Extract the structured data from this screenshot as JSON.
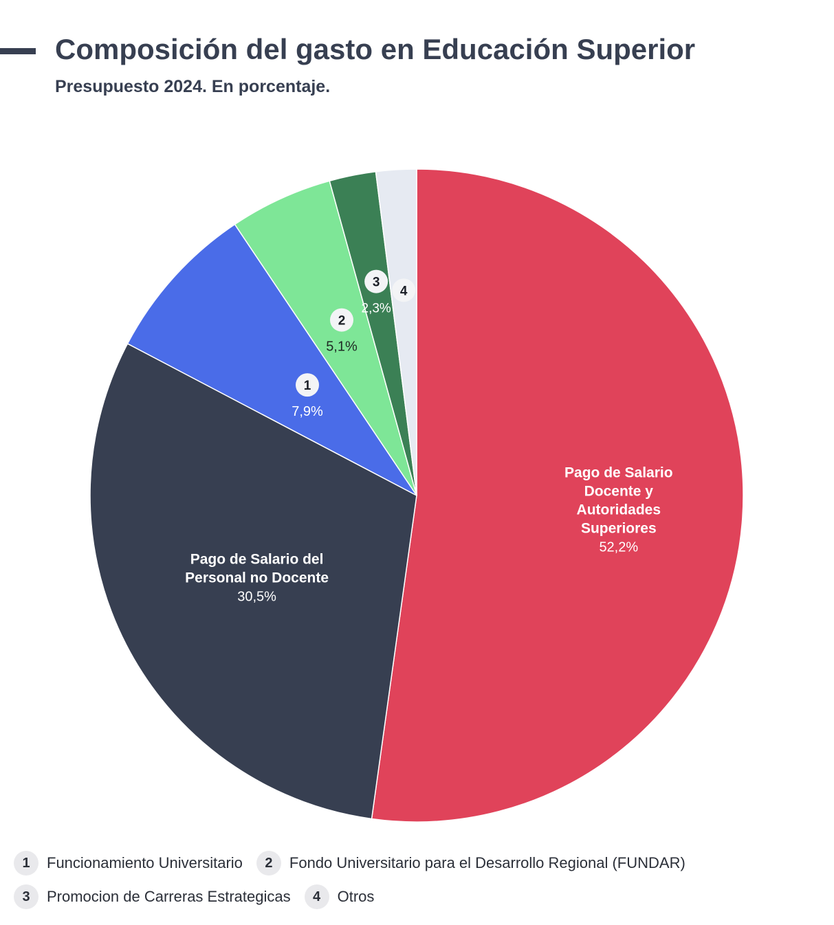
{
  "header": {
    "title": "Composición del gasto en Educación Superior",
    "subtitle": "Presupuesto 2024. En porcentaje."
  },
  "chart_data": {
    "type": "pie",
    "title": "Composición del gasto en Educación Superior",
    "subtitle": "Presupuesto 2024. En porcentaje.",
    "value_format": "percent",
    "start": "top, clockwise",
    "slices": [
      {
        "label": "Pago de Salario Docente y Autoridades Superiores",
        "label_lines": [
          "Pago de Salario",
          "Docente y",
          "Autoridades",
          "Superiores"
        ],
        "value": 52.2,
        "value_label": "52,2%",
        "color": "#e0435a",
        "marker": ""
      },
      {
        "label": "Pago de Salario del Personal no Docente",
        "label_lines": [
          "Pago de Salario del",
          "Personal no Docente"
        ],
        "value": 30.5,
        "value_label": "30,5%",
        "color": "#373f51",
        "marker": ""
      },
      {
        "label": "Funcionamiento Universitario",
        "label_lines": [],
        "value": 7.9,
        "value_label": "7,9%",
        "color": "#4a6ce8",
        "marker": "1"
      },
      {
        "label": "Fondo Universitario para el Desarrollo Regional (FUNDAR)",
        "label_lines": [],
        "value": 5.1,
        "value_label": "5,1%",
        "color": "#7ee697",
        "marker": "2"
      },
      {
        "label": "Promocion de Carreras Estrategicas",
        "label_lines": [],
        "value": 2.3,
        "value_label": "2,3%",
        "color": "#3b8055",
        "marker": "3"
      },
      {
        "label": "Otros",
        "label_lines": [],
        "value": 2.0,
        "value_label": "",
        "color": "#e6eaf2",
        "marker": "4"
      }
    ]
  },
  "legend": {
    "rows": [
      [
        {
          "number": "1",
          "label": "Funcionamiento Universitario"
        },
        {
          "number": "2",
          "label": "Fondo Universitario para el Desarrollo Regional (FUNDAR)"
        }
      ],
      [
        {
          "number": "3",
          "label": "Promocion de Carreras Estrategicas"
        },
        {
          "number": "4",
          "label": "Otros"
        }
      ]
    ]
  }
}
